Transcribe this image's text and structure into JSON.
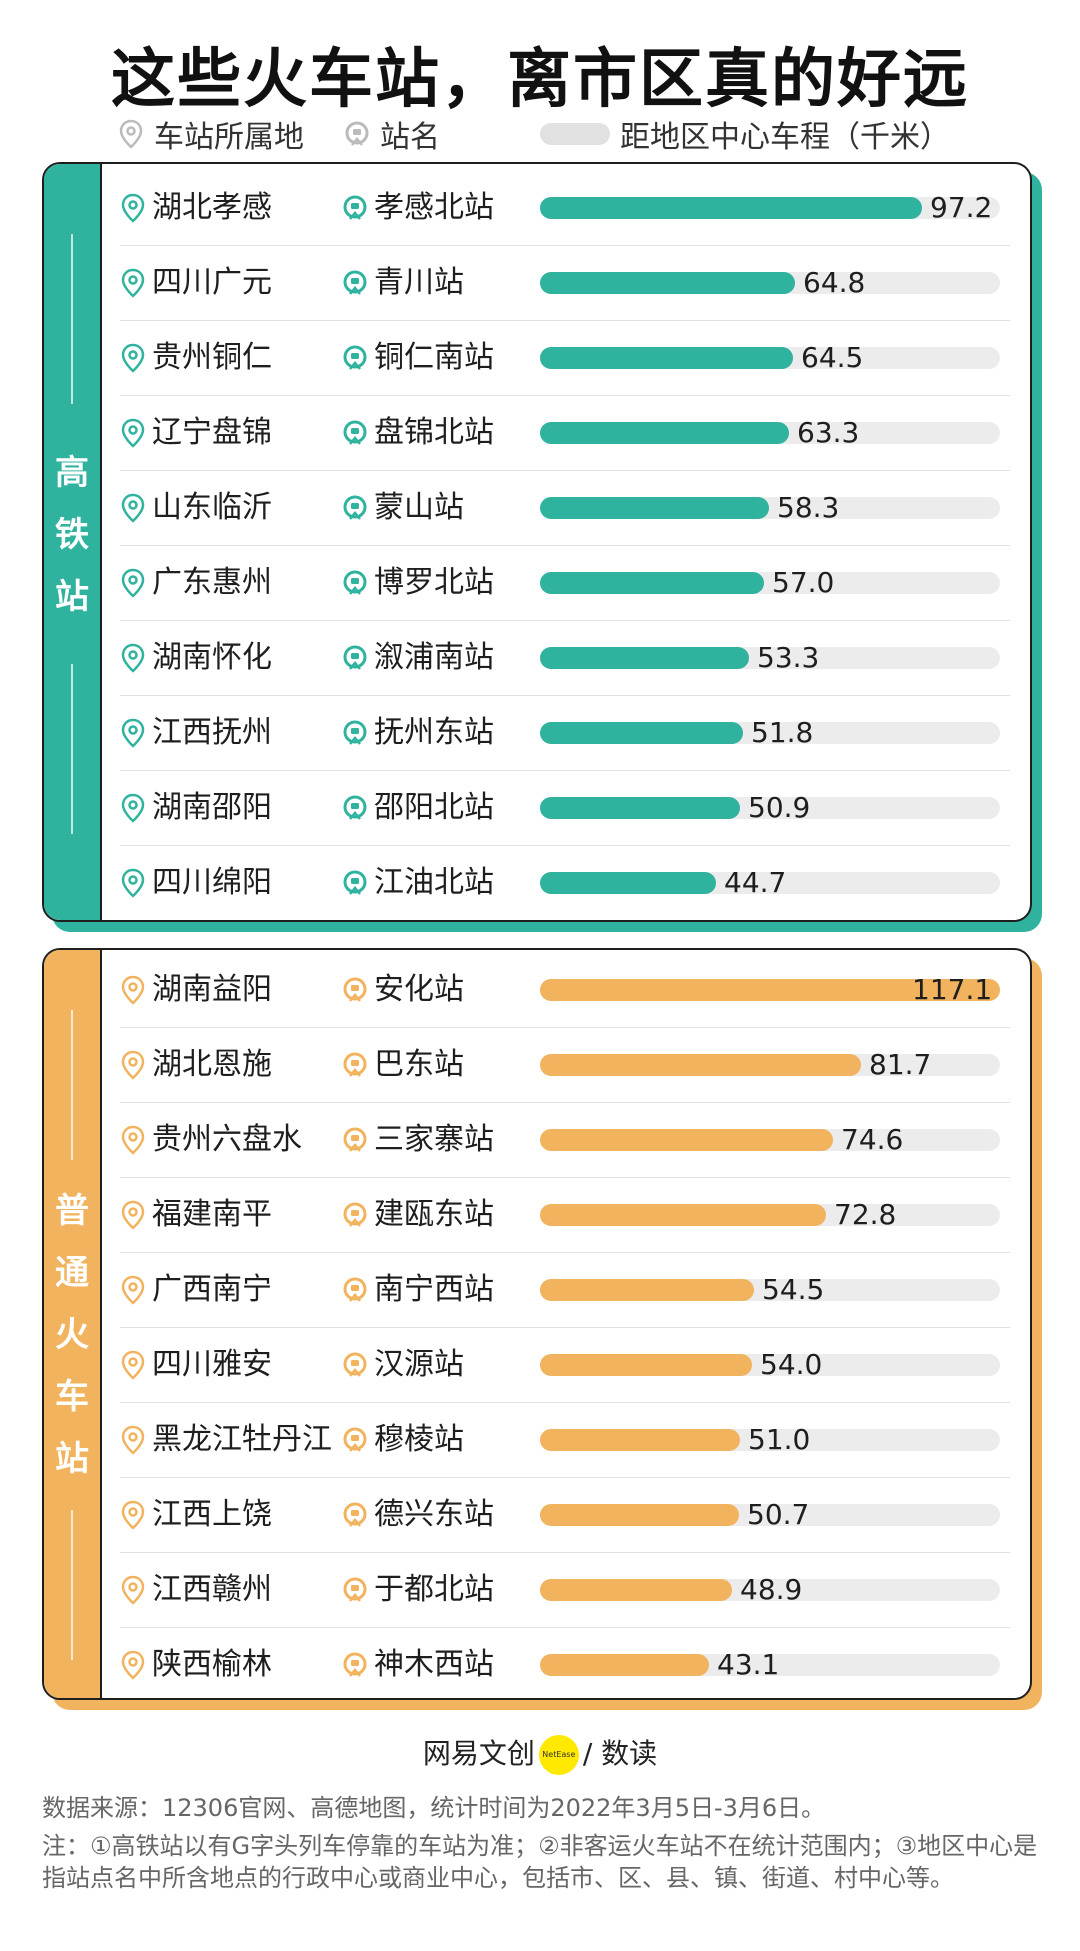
{
  "title": "这些火车站，离市区真的好远",
  "legend": {
    "region": "车站所属地",
    "station": "站名",
    "distance": "距地区中心车程（千米）"
  },
  "colors": {
    "hsr": "#2fb39e",
    "ordinary": "#f2b35e",
    "track": "#ececec"
  },
  "chart_data": [
    {
      "type": "bar",
      "category": "高铁站",
      "title": "这些火车站，离市区真的好远",
      "unit": "千米",
      "xlim": [
        0,
        117.1
      ],
      "regions": [
        "湖北孝感",
        "四川广元",
        "贵州铜仁",
        "辽宁盘锦",
        "山东临沂",
        "广东惠州",
        "湖南怀化",
        "江西抚州",
        "湖南邵阳",
        "四川绵阳"
      ],
      "categories": [
        "孝感北站",
        "青川站",
        "铜仁南站",
        "盘锦北站",
        "蒙山站",
        "博罗北站",
        "溆浦南站",
        "抚州东站",
        "邵阳北站",
        "江油北站"
      ],
      "values": [
        97.2,
        64.8,
        64.5,
        63.3,
        58.3,
        57.0,
        53.3,
        51.8,
        50.9,
        44.7
      ],
      "labels": [
        "97.2",
        "64.8",
        "64.5",
        "63.3",
        "58.3",
        "57.0",
        "53.3",
        "51.8",
        "50.9",
        "44.7"
      ]
    },
    {
      "type": "bar",
      "category": "普通火车站",
      "title": "这些火车站，离市区真的好远",
      "unit": "千米",
      "xlim": [
        0,
        117.1
      ],
      "regions": [
        "湖南益阳",
        "湖北恩施",
        "贵州六盘水",
        "福建南平",
        "广西南宁",
        "四川雅安",
        "黑龙江牡丹江",
        "江西上饶",
        "江西赣州",
        "陕西榆林"
      ],
      "categories": [
        "安化站",
        "巴东站",
        "三家寨站",
        "建瓯东站",
        "南宁西站",
        "汉源站",
        "穆棱站",
        "德兴东站",
        "于都北站",
        "神木西站"
      ],
      "values": [
        117.1,
        81.7,
        74.6,
        72.8,
        54.5,
        54.0,
        51.0,
        50.7,
        48.9,
        43.1
      ],
      "labels": [
        "117.1",
        "81.7",
        "74.6",
        "72.8",
        "54.5",
        "54.0",
        "51.0",
        "50.7",
        "48.9",
        "43.1"
      ]
    }
  ],
  "brand": {
    "left": "网易文创",
    "badge": "NetEase",
    "right": "数读"
  },
  "source": "数据来源：12306官网、高德地图，统计时间为2022年3月5日-3月6日。",
  "notes": "注：①高铁站以有G字头列车停靠的车站为准；②非客运火车站不在统计范围内；③地区中心是指站点名中所含地点的行政中心或商业中心，包括市、区、县、镇、街道、村中心等。"
}
